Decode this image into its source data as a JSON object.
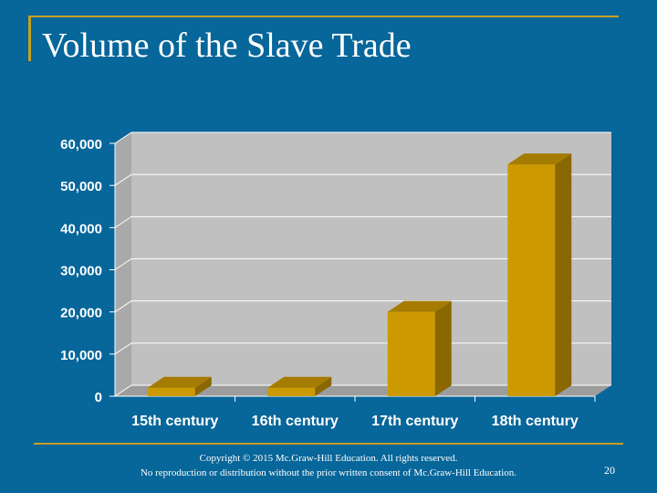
{
  "slide": {
    "title": "Volume of the Slave Trade",
    "copyright_line1": "Copyright © 2015 Mc.Graw-Hill Education. All rights reserved.",
    "copyright_line2": "No reproduction or distribution without the prior written consent of Mc.Graw-Hill Education.",
    "page_number": "20"
  },
  "colors": {
    "background": "#07669a",
    "accent": "#c79f22",
    "bar_front": "#cc9a00",
    "bar_top": "#a57c00",
    "bar_side": "#8a6700",
    "plot_back": "#c0c0c0",
    "plot_floor": "#9c9c9c"
  },
  "chart_data": {
    "type": "bar",
    "categories": [
      "15th century",
      "16th century",
      "17th century",
      "18th century"
    ],
    "values": [
      2000,
      2000,
      20000,
      55000
    ],
    "ylim": [
      0,
      60000
    ],
    "yticks": [
      "0",
      "10,000",
      "20,000",
      "30,000",
      "40,000",
      "50,000",
      "60,000"
    ],
    "grid": true,
    "style": "3d"
  }
}
